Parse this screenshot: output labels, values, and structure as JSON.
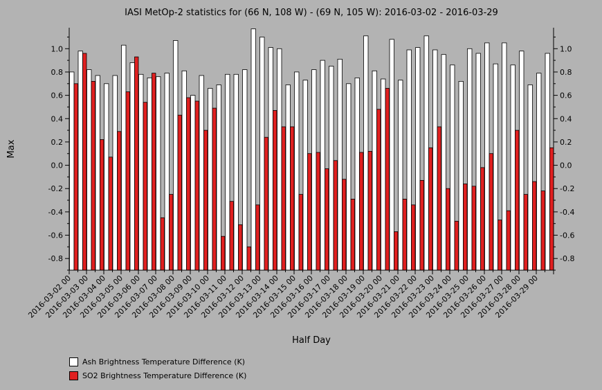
{
  "chart_data": {
    "type": "bar",
    "title": "IASI MetOp-2 statistics for (66 N, 108 W) - (69 N, 105 W): 2016-03-02 - 2016-03-29",
    "xlabel": "Half Day",
    "ylabel": "Max",
    "ylim": [
      -0.9,
      1.18
    ],
    "yticks": [
      -0.8,
      -0.6,
      -0.4,
      -0.2,
      0.0,
      0.2,
      0.4,
      0.6,
      0.8,
      1.0
    ],
    "ytick_labels": [
      "-0.8",
      "-0.6",
      "-0.4",
      "-0.2",
      "0.0",
      "0.2",
      "0.4",
      "0.6",
      "0.8",
      "1.0"
    ],
    "categories": [
      "2016-03-02 00",
      "2016-03-02 12",
      "2016-03-03 00",
      "2016-03-03 12",
      "2016-03-04 00",
      "2016-03-04 12",
      "2016-03-05 00",
      "2016-03-05 12",
      "2016-03-06 00",
      "2016-03-06 12",
      "2016-03-07 00",
      "2016-03-07 12",
      "2016-03-08 00",
      "2016-03-08 12",
      "2016-03-09 00",
      "2016-03-09 12",
      "2016-03-10 00",
      "2016-03-10 12",
      "2016-03-11 00",
      "2016-03-11 12",
      "2016-03-12 00",
      "2016-03-12 12",
      "2016-03-13 00",
      "2016-03-13 12",
      "2016-03-14 00",
      "2016-03-14 12",
      "2016-03-15 00",
      "2016-03-15 12",
      "2016-03-16 00",
      "2016-03-16 12",
      "2016-03-17 00",
      "2016-03-17 12",
      "2016-03-18 00",
      "2016-03-18 12",
      "2016-03-19 00",
      "2016-03-19 12",
      "2016-03-20 00",
      "2016-03-20 12",
      "2016-03-21 00",
      "2016-03-21 12",
      "2016-03-22 00",
      "2016-03-22 12",
      "2016-03-23 00",
      "2016-03-23 12",
      "2016-03-24 00",
      "2016-03-24 12",
      "2016-03-25 00",
      "2016-03-25 12",
      "2016-03-26 00",
      "2016-03-26 12",
      "2016-03-27 00",
      "2016-03-27 12",
      "2016-03-28 00",
      "2016-03-28 12",
      "2016-03-29 00",
      "2016-03-29 12"
    ],
    "tick_labels": [
      "2016-03-02 00",
      "2016-03-03 00",
      "2016-03-04 00",
      "2016-03-05 00",
      "2016-03-06 00",
      "2016-03-07 00",
      "2016-03-08 00",
      "2016-03-09 00",
      "2016-03-10 00",
      "2016-03-11 00",
      "2016-03-12 00",
      "2016-03-13 00",
      "2016-03-14 00",
      "2016-03-15 00",
      "2016-03-16 00",
      "2016-03-17 00",
      "2016-03-18 00",
      "2016-03-19 00",
      "2016-03-20 00",
      "2016-03-21 00",
      "2016-03-22 00",
      "2016-03-23 00",
      "2016-03-24 00",
      "2016-03-25 00",
      "2016-03-26 00",
      "2016-03-27 00",
      "2016-03-28 00",
      "2016-03-29 00"
    ],
    "series": [
      {
        "name": "Ash Brightness Temperature Difference (K)",
        "color": "#ffffff",
        "values": [
          0.8,
          0.98,
          0.82,
          0.77,
          0.7,
          0.77,
          1.03,
          0.88,
          0.78,
          0.75,
          0.76,
          0.79,
          1.07,
          0.81,
          0.6,
          0.77,
          0.66,
          0.69,
          0.78,
          0.78,
          0.82,
          1.17,
          1.1,
          1.01,
          1.0,
          0.69,
          0.8,
          0.73,
          0.82,
          0.9,
          0.85,
          0.91,
          0.7,
          0.75,
          1.11,
          0.81,
          0.74,
          1.08,
          0.73,
          0.99,
          1.01,
          1.11,
          0.99,
          0.95,
          0.86,
          0.72,
          1.0,
          0.96,
          1.05,
          0.87,
          1.05,
          0.86,
          0.98,
          0.69,
          0.79,
          0.96
        ]
      },
      {
        "name": "SO2 Brightness Temperature Difference (K)",
        "color": "#e02020",
        "values": [
          0.7,
          0.96,
          0.72,
          0.22,
          0.07,
          0.29,
          0.63,
          0.93,
          0.54,
          0.79,
          -0.45,
          -0.25,
          0.43,
          0.58,
          0.55,
          0.3,
          0.49,
          -0.61,
          -0.31,
          -0.51,
          -0.7,
          -0.34,
          0.24,
          0.47,
          0.33,
          0.33,
          -0.25,
          0.1,
          0.11,
          -0.03,
          0.04,
          -0.12,
          -0.29,
          0.11,
          0.12,
          0.48,
          0.66,
          -0.57,
          -0.29,
          -0.34,
          -0.13,
          0.15,
          0.33,
          -0.2,
          -0.48,
          -0.16,
          -0.18,
          -0.02,
          0.1,
          -0.47,
          -0.39,
          0.3,
          -0.25,
          -0.14,
          -0.22,
          0.15
        ]
      }
    ],
    "legend_position": "bottom-left",
    "grid": false
  }
}
